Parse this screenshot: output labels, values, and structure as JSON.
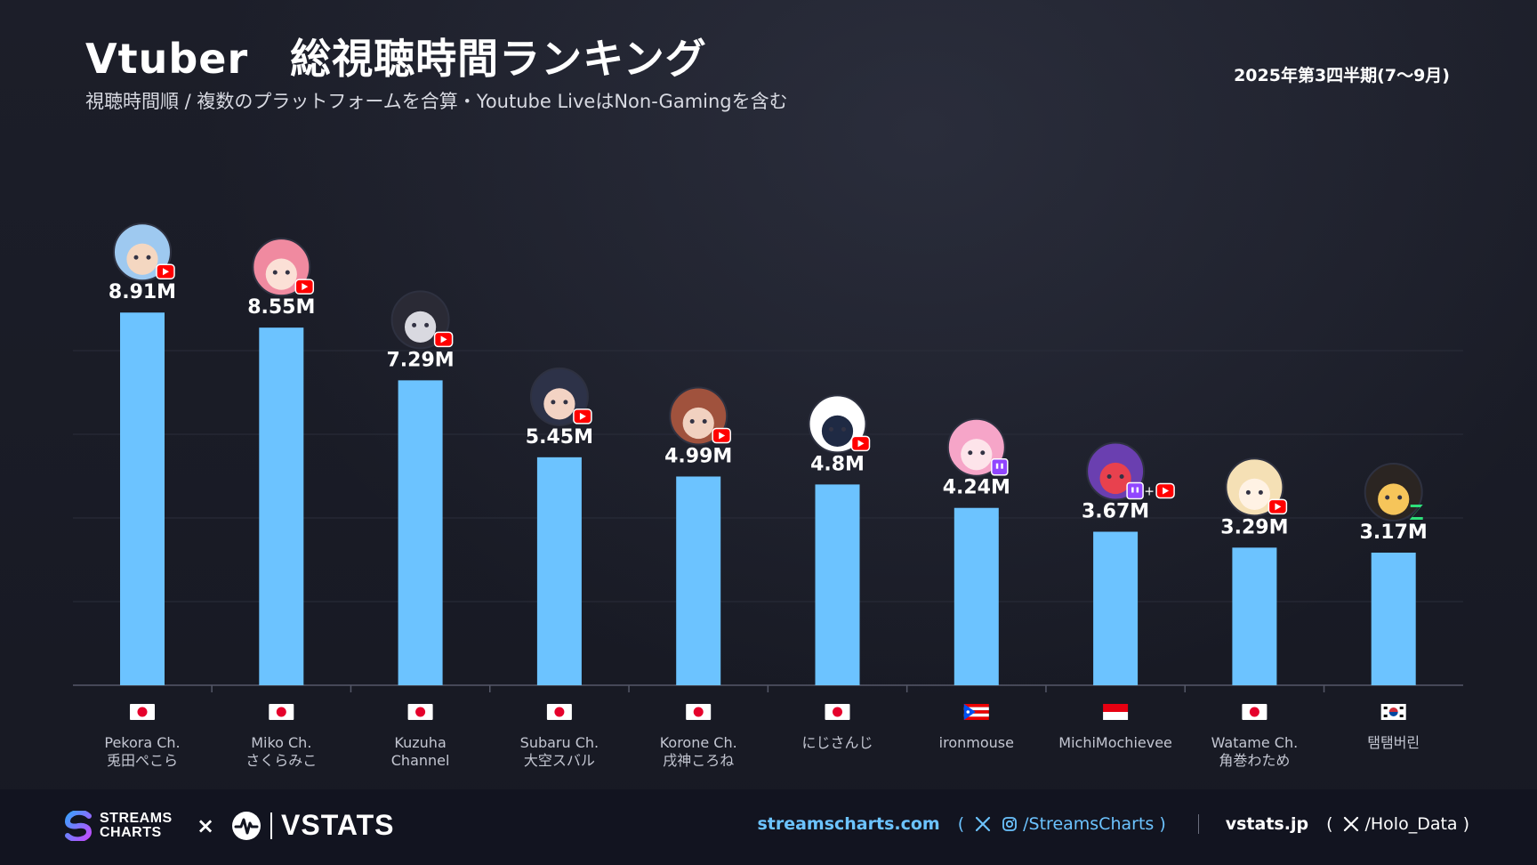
{
  "header": {
    "title": "Vtuber　総視聴時間ランキング",
    "subtitle": "視聴時間順 / 複数のプラットフォームを合算・Youtube LiveはNon-Gamingを含む",
    "period": "2025年第3四半期(7〜9月)"
  },
  "colors": {
    "bar": "#6cc3ff",
    "background": "#1a1c26",
    "footer": "#121420",
    "youtube": "#ff0000",
    "twitch": "#9146ff",
    "zeta": "#2ee07a"
  },
  "chart_data": {
    "type": "bar",
    "title": "Vtuber　総視聴時間ランキング",
    "unit": "M",
    "ylim": [
      0,
      10
    ],
    "grid": true,
    "categories": [
      "Pekora Ch.\n兎田ぺこら",
      "Miko Ch.\nさくらみこ",
      "Kuzuha\nChannel",
      "Subaru Ch.\n大空スバル",
      "Korone Ch.\n戌神ころね",
      "にじさんじ",
      "ironmouse",
      "MichiMochievee",
      "Watame Ch.\n角巻わため",
      "탬탬버린"
    ],
    "values": [
      8.91,
      8.55,
      7.29,
      5.45,
      4.99,
      4.8,
      4.24,
      3.67,
      3.29,
      3.17
    ],
    "value_labels": [
      "8.91M",
      "8.55M",
      "7.29M",
      "5.45M",
      "4.99M",
      "4.8M",
      "4.24M",
      "3.67M",
      "3.29M",
      "3.17M"
    ],
    "flags": [
      "japan-flag",
      "japan-flag",
      "japan-flag",
      "japan-flag",
      "japan-flag",
      "japan-flag",
      "puerto-rico-flag",
      "indonesia-flag",
      "japan-flag",
      "south-korea-flag"
    ],
    "platforms": [
      [
        "youtube"
      ],
      [
        "youtube"
      ],
      [
        "youtube"
      ],
      [
        "youtube"
      ],
      [
        "youtube"
      ],
      [
        "youtube"
      ],
      [
        "twitch"
      ],
      [
        "twitch",
        "youtube"
      ],
      [
        "youtube"
      ],
      [
        "zeta"
      ]
    ],
    "avatar_colors": [
      [
        "#9ec9f0",
        "#f4d7c1"
      ],
      [
        "#f08aa0",
        "#fbe0d6"
      ],
      [
        "#2a2a35",
        "#d9d9e0"
      ],
      [
        "#2d3248",
        "#f3d3c4"
      ],
      [
        "#a0523d",
        "#f1d1c0"
      ],
      [
        "#ffffff",
        "#1f2a44"
      ],
      [
        "#f6a5c8",
        "#fde4ea"
      ],
      [
        "#6a3fb0",
        "#e8414e"
      ],
      [
        "#f5e0b5",
        "#fff2e4"
      ],
      [
        "#2b2522",
        "#f6c55a"
      ]
    ]
  },
  "footer": {
    "streamscharts_logo": "STREAMS\nCHARTS",
    "times": "×",
    "vstats_logo": "VSTATS",
    "site1": "streamscharts.com",
    "open_paren": "(",
    "close_paren": ")",
    "handle1": "/StreamsCharts",
    "site2": "vstats.jp",
    "handle2": "/Holo_Data"
  }
}
